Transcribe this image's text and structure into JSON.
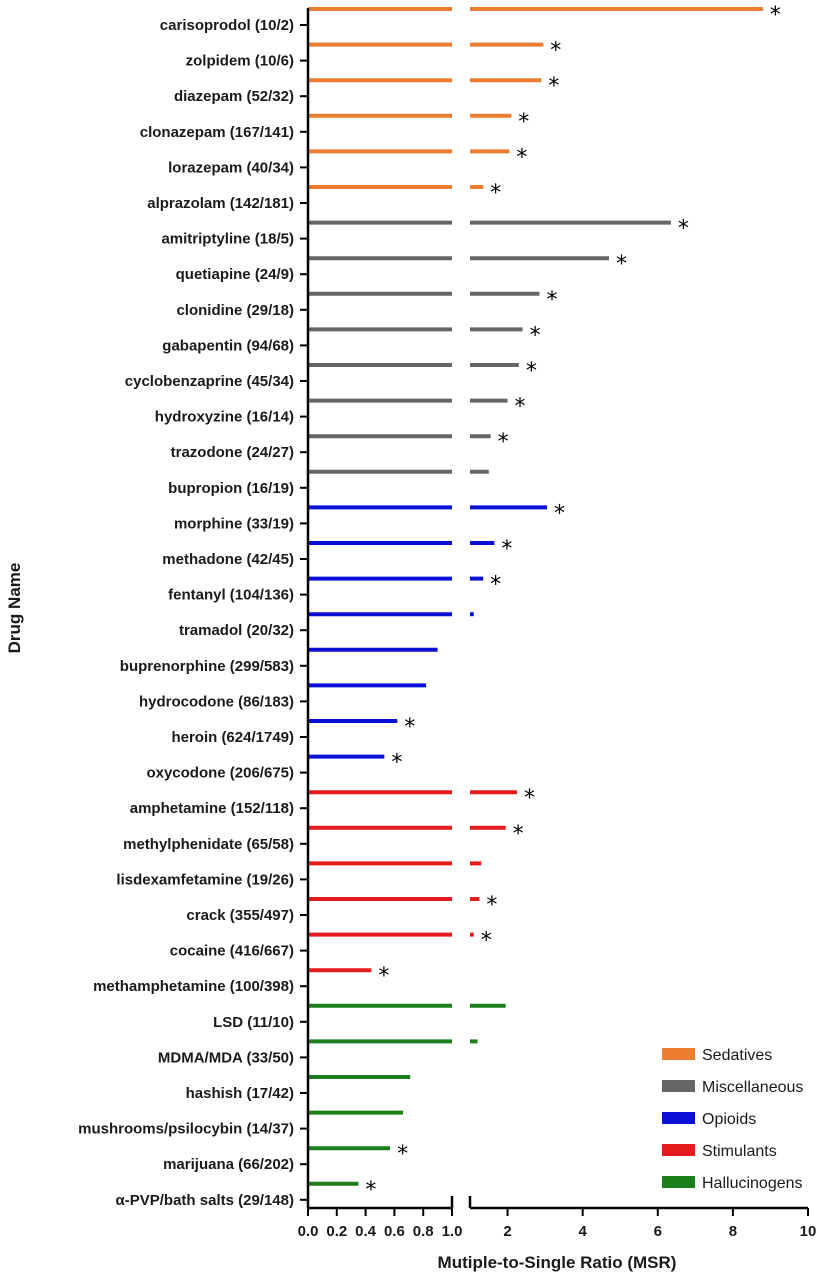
{
  "chart_data": {
    "type": "bar",
    "orientation": "horizontal",
    "xlabel": "Mutiple-to-Single Ratio (MSR)",
    "ylabel": "Drug Name",
    "axis_break": {
      "left_range": [
        0,
        1.0
      ],
      "right_range": [
        1.0,
        10
      ]
    },
    "left_ticks": [
      "0.0",
      "0.2",
      "0.4",
      "0.6",
      "0.8",
      "1.0"
    ],
    "right_ticks": [
      "2",
      "4",
      "6",
      "8",
      "10"
    ],
    "legend_position": "bottom-right",
    "groups": [
      {
        "name": "Sedatives",
        "color": "#ED7D31"
      },
      {
        "name": "Miscellaneous",
        "color": "#666666"
      },
      {
        "name": "Opioids",
        "color": "#0A10D6"
      },
      {
        "name": "Stimulants",
        "color": "#E41A1C"
      },
      {
        "name": "Hallucinogens",
        "color": "#1C7F1C"
      }
    ],
    "drugs": [
      {
        "label": "carisoprodol (10/2)",
        "group": "Sedatives",
        "value": 8.8,
        "significant": true
      },
      {
        "label": "zolpidem (10/6)",
        "group": "Sedatives",
        "value": 2.95,
        "significant": true
      },
      {
        "label": "diazepam (52/32)",
        "group": "Sedatives",
        "value": 2.9,
        "significant": true
      },
      {
        "label": "clonazepam (167/141)",
        "group": "Sedatives",
        "value": 2.1,
        "significant": true
      },
      {
        "label": "lorazepam (40/34)",
        "group": "Sedatives",
        "value": 2.05,
        "significant": true
      },
      {
        "label": "alprazolam (142/181)",
        "group": "Sedatives",
        "value": 1.35,
        "significant": true
      },
      {
        "label": "amitriptyline (18/5)",
        "group": "Miscellaneous",
        "value": 6.35,
        "significant": true
      },
      {
        "label": "quetiapine (24/9)",
        "group": "Miscellaneous",
        "value": 4.7,
        "significant": true
      },
      {
        "label": "clonidine (29/18)",
        "group": "Miscellaneous",
        "value": 2.85,
        "significant": true
      },
      {
        "label": "gabapentin (94/68)",
        "group": "Miscellaneous",
        "value": 2.4,
        "significant": true
      },
      {
        "label": "cyclobenzaprine (45/34)",
        "group": "Miscellaneous",
        "value": 2.3,
        "significant": true
      },
      {
        "label": "hydroxyzine (16/14)",
        "group": "Miscellaneous",
        "value": 2.0,
        "significant": true
      },
      {
        "label": "trazodone (24/27)",
        "group": "Miscellaneous",
        "value": 1.55,
        "significant": true
      },
      {
        "label": "bupropion (16/19)",
        "group": "Miscellaneous",
        "value": 1.5,
        "significant": false
      },
      {
        "label": "morphine (33/19)",
        "group": "Opioids",
        "value": 3.05,
        "significant": true
      },
      {
        "label": "methadone (42/45)",
        "group": "Opioids",
        "value": 1.65,
        "significant": true
      },
      {
        "label": "fentanyl (104/136)",
        "group": "Opioids",
        "value": 1.35,
        "significant": true
      },
      {
        "label": "tramadol (20/32)",
        "group": "Opioids",
        "value": 1.1,
        "significant": false
      },
      {
        "label": "buprenorphine (299/583)",
        "group": "Opioids",
        "value": 0.9,
        "significant": false
      },
      {
        "label": "hydrocodone (86/183)",
        "group": "Opioids",
        "value": 0.82,
        "significant": false
      },
      {
        "label": "heroin (624/1749)",
        "group": "Opioids",
        "value": 0.62,
        "significant": true
      },
      {
        "label": "oxycodone (206/675)",
        "group": "Opioids",
        "value": 0.53,
        "significant": true
      },
      {
        "label": "amphetamine (152/118)",
        "group": "Stimulants",
        "value": 2.25,
        "significant": true
      },
      {
        "label": "methylphenidate (65/58)",
        "group": "Stimulants",
        "value": 1.95,
        "significant": true
      },
      {
        "label": "lisdexamfetamine (19/26)",
        "group": "Stimulants",
        "value": 1.3,
        "significant": false
      },
      {
        "label": "crack (355/497)",
        "group": "Stimulants",
        "value": 1.25,
        "significant": true
      },
      {
        "label": "cocaine (416/667)",
        "group": "Stimulants",
        "value": 1.1,
        "significant": true
      },
      {
        "label": "methamphetamine (100/398)",
        "group": "Stimulants",
        "value": 0.44,
        "significant": true
      },
      {
        "label": "LSD (11/10)",
        "group": "Hallucinogens",
        "value": 1.95,
        "significant": false
      },
      {
        "label": "MDMA/MDA (33/50)",
        "group": "Hallucinogens",
        "value": 1.2,
        "significant": false
      },
      {
        "label": "hashish (17/42)",
        "group": "Hallucinogens",
        "value": 0.71,
        "significant": false
      },
      {
        "label": "mushrooms/psilocybin (14/37)",
        "group": "Hallucinogens",
        "value": 0.66,
        "significant": false
      },
      {
        "label": "marijuana (66/202)",
        "group": "Hallucinogens",
        "value": 0.57,
        "significant": true
      },
      {
        "label": "α-PVP/bath salts (29/148)",
        "group": "Hallucinogens",
        "value": 0.35,
        "significant": true
      }
    ],
    "significance_marker": "*"
  }
}
